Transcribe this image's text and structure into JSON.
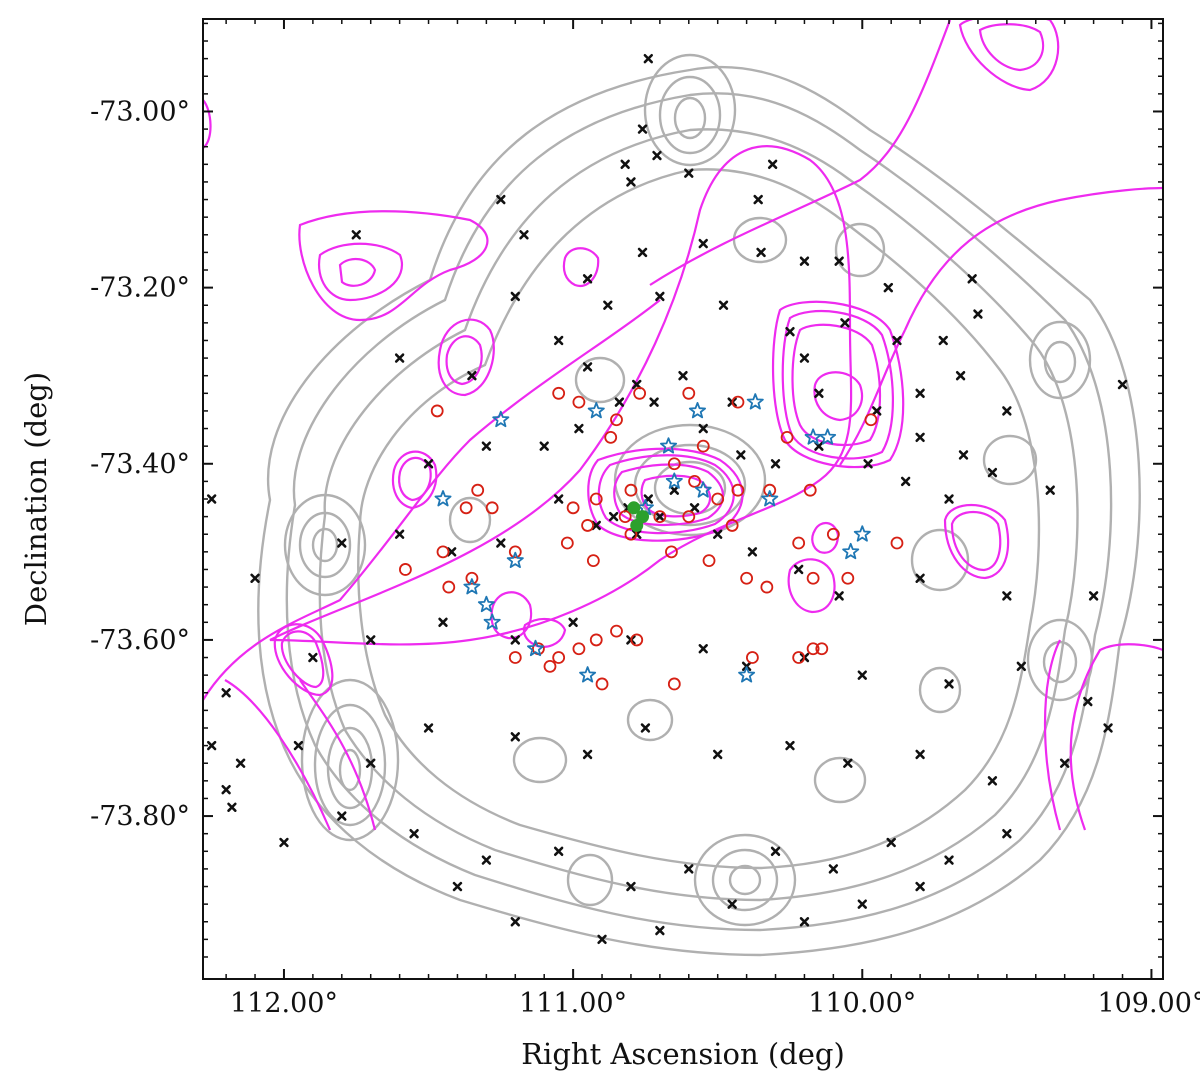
{
  "chart_data": {
    "type": "scatter",
    "xlabel": "Right Ascension (deg)",
    "ylabel": "Declination (deg)",
    "x_reversed": true,
    "xlim": [
      112.28,
      108.96
    ],
    "ylim": [
      -73.985,
      -72.895
    ],
    "xticks": [
      {
        "value": 112.0,
        "label": "112.00°"
      },
      {
        "value": 111.0,
        "label": "111.00°"
      },
      {
        "value": 110.0,
        "label": "110.00°"
      },
      {
        "value": 109.0,
        "label": "109.00°"
      }
    ],
    "yticks": [
      {
        "value": -73.0,
        "label": "-73.00°"
      },
      {
        "value": -73.2,
        "label": "-73.20°"
      },
      {
        "value": -73.4,
        "label": "-73.40°"
      },
      {
        "value": -73.6,
        "label": "-73.60°"
      },
      {
        "value": -73.8,
        "label": "-73.80°"
      }
    ],
    "grid": false,
    "colors": {
      "gray_contours": "#b0b0b0",
      "magenta_contours": "#ee2bef",
      "black_points": "#111111",
      "red_circles": "#d62014",
      "blue_stars": "#1f77b4",
      "green_center": "#2ca02c"
    },
    "series": [
      {
        "marker": "black-x",
        "points": [
          [
            110.74,
            -72.94
          ],
          [
            110.76,
            -73.02
          ],
          [
            110.82,
            -73.06
          ],
          [
            110.8,
            -73.08
          ],
          [
            110.71,
            -73.05
          ],
          [
            110.6,
            -73.07
          ],
          [
            110.31,
            -73.06
          ],
          [
            111.25,
            -73.1
          ],
          [
            110.36,
            -73.1
          ],
          [
            111.17,
            -73.14
          ],
          [
            110.95,
            -73.19
          ],
          [
            110.76,
            -73.16
          ],
          [
            110.55,
            -73.15
          ],
          [
            110.35,
            -73.16
          ],
          [
            110.2,
            -73.17
          ],
          [
            110.08,
            -73.17
          ],
          [
            109.91,
            -73.2
          ],
          [
            109.62,
            -73.19
          ],
          [
            109.6,
            -73.23
          ],
          [
            109.72,
            -73.26
          ],
          [
            111.75,
            -73.14
          ],
          [
            111.2,
            -73.21
          ],
          [
            110.88,
            -73.22
          ],
          [
            110.7,
            -73.21
          ],
          [
            110.48,
            -73.22
          ],
          [
            110.25,
            -73.25
          ],
          [
            110.06,
            -73.24
          ],
          [
            109.88,
            -73.26
          ],
          [
            109.8,
            -73.32
          ],
          [
            109.66,
            -73.3
          ],
          [
            109.5,
            -73.34
          ],
          [
            109.1,
            -73.31
          ],
          [
            112.4,
            -73.26
          ],
          [
            112.33,
            -73.3
          ],
          [
            111.6,
            -73.28
          ],
          [
            111.35,
            -73.3
          ],
          [
            111.05,
            -73.26
          ],
          [
            110.95,
            -73.29
          ],
          [
            110.78,
            -73.31
          ],
          [
            110.62,
            -73.3
          ],
          [
            110.45,
            -73.33
          ],
          [
            110.2,
            -73.28
          ],
          [
            110.15,
            -73.32
          ],
          [
            109.95,
            -73.34
          ],
          [
            109.8,
            -73.37
          ],
          [
            109.65,
            -73.39
          ],
          [
            109.55,
            -73.41
          ],
          [
            109.35,
            -73.43
          ],
          [
            112.5,
            -73.42
          ],
          [
            112.25,
            -73.44
          ],
          [
            111.5,
            -73.4
          ],
          [
            111.3,
            -73.38
          ],
          [
            111.1,
            -73.38
          ],
          [
            110.98,
            -73.36
          ],
          [
            110.84,
            -73.33
          ],
          [
            110.72,
            -73.33
          ],
          [
            110.55,
            -73.36
          ],
          [
            110.42,
            -73.39
          ],
          [
            110.3,
            -73.4
          ],
          [
            110.15,
            -73.38
          ],
          [
            109.98,
            -73.4
          ],
          [
            109.85,
            -73.42
          ],
          [
            109.7,
            -73.44
          ],
          [
            112.45,
            -73.51
          ],
          [
            112.3,
            -73.54
          ],
          [
            112.1,
            -73.53
          ],
          [
            111.8,
            -73.49
          ],
          [
            111.6,
            -73.48
          ],
          [
            111.42,
            -73.5
          ],
          [
            111.25,
            -73.49
          ],
          [
            111.05,
            -73.44
          ],
          [
            110.92,
            -73.47
          ],
          [
            110.86,
            -73.46
          ],
          [
            110.81,
            -73.45
          ],
          [
            110.78,
            -73.48
          ],
          [
            110.74,
            -73.44
          ],
          [
            110.7,
            -73.46
          ],
          [
            110.65,
            -73.43
          ],
          [
            110.58,
            -73.45
          ],
          [
            110.5,
            -73.48
          ],
          [
            110.38,
            -73.5
          ],
          [
            110.22,
            -73.52
          ],
          [
            110.08,
            -73.55
          ],
          [
            109.8,
            -73.53
          ],
          [
            109.5,
            -73.55
          ],
          [
            109.2,
            -73.55
          ],
          [
            112.6,
            -73.58
          ],
          [
            112.35,
            -73.63
          ],
          [
            112.2,
            -73.66
          ],
          [
            111.9,
            -73.62
          ],
          [
            111.7,
            -73.6
          ],
          [
            111.45,
            -73.58
          ],
          [
            111.2,
            -73.6
          ],
          [
            111.0,
            -73.58
          ],
          [
            110.8,
            -73.6
          ],
          [
            110.55,
            -73.61
          ],
          [
            110.4,
            -73.63
          ],
          [
            110.2,
            -73.62
          ],
          [
            110.0,
            -73.64
          ],
          [
            109.7,
            -73.65
          ],
          [
            109.45,
            -73.63
          ],
          [
            109.22,
            -73.67
          ],
          [
            112.25,
            -73.72
          ],
          [
            112.15,
            -73.74
          ],
          [
            112.2,
            -73.77
          ],
          [
            112.18,
            -73.79
          ],
          [
            111.95,
            -73.72
          ],
          [
            111.7,
            -73.74
          ],
          [
            111.5,
            -73.7
          ],
          [
            111.2,
            -73.71
          ],
          [
            110.95,
            -73.73
          ],
          [
            110.75,
            -73.7
          ],
          [
            110.5,
            -73.73
          ],
          [
            110.25,
            -73.72
          ],
          [
            110.05,
            -73.74
          ],
          [
            109.8,
            -73.73
          ],
          [
            109.55,
            -73.76
          ],
          [
            109.3,
            -73.74
          ],
          [
            109.15,
            -73.7
          ],
          [
            112.0,
            -73.83
          ],
          [
            111.8,
            -73.8
          ],
          [
            111.55,
            -73.82
          ],
          [
            111.3,
            -73.85
          ],
          [
            111.05,
            -73.84
          ],
          [
            110.8,
            -73.88
          ],
          [
            110.6,
            -73.86
          ],
          [
            110.3,
            -73.84
          ],
          [
            110.1,
            -73.86
          ],
          [
            109.9,
            -73.83
          ],
          [
            109.7,
            -73.85
          ],
          [
            109.5,
            -73.82
          ],
          [
            111.4,
            -73.88
          ],
          [
            111.2,
            -73.92
          ],
          [
            110.9,
            -73.94
          ],
          [
            110.7,
            -73.93
          ],
          [
            110.45,
            -73.9
          ],
          [
            110.2,
            -73.92
          ],
          [
            110.0,
            -73.9
          ],
          [
            109.8,
            -73.88
          ]
        ]
      },
      {
        "marker": "red-open-circle",
        "points": [
          [
            111.47,
            -73.34
          ],
          [
            111.05,
            -73.32
          ],
          [
            110.98,
            -73.33
          ],
          [
            110.85,
            -73.35
          ],
          [
            110.77,
            -73.32
          ],
          [
            110.6,
            -73.32
          ],
          [
            110.43,
            -73.33
          ],
          [
            110.55,
            -73.38
          ],
          [
            110.26,
            -73.37
          ],
          [
            109.97,
            -73.35
          ],
          [
            110.87,
            -73.37
          ],
          [
            111.33,
            -73.43
          ],
          [
            111.37,
            -73.45
          ],
          [
            111.28,
            -73.45
          ],
          [
            111.0,
            -73.45
          ],
          [
            110.92,
            -73.44
          ],
          [
            110.8,
            -73.43
          ],
          [
            110.65,
            -73.4
          ],
          [
            110.58,
            -73.42
          ],
          [
            110.5,
            -73.44
          ],
          [
            110.43,
            -73.43
          ],
          [
            110.32,
            -73.43
          ],
          [
            110.18,
            -73.43
          ],
          [
            110.95,
            -73.47
          ],
          [
            110.82,
            -73.46
          ],
          [
            110.7,
            -73.46
          ],
          [
            110.6,
            -73.46
          ],
          [
            110.45,
            -73.47
          ],
          [
            110.22,
            -73.49
          ],
          [
            110.1,
            -73.48
          ],
          [
            109.88,
            -73.49
          ],
          [
            111.02,
            -73.49
          ],
          [
            110.93,
            -73.51
          ],
          [
            110.8,
            -73.48
          ],
          [
            110.66,
            -73.5
          ],
          [
            110.53,
            -73.51
          ],
          [
            111.45,
            -73.5
          ],
          [
            111.2,
            -73.5
          ],
          [
            111.58,
            -73.52
          ],
          [
            111.43,
            -73.54
          ],
          [
            111.35,
            -73.53
          ],
          [
            110.4,
            -73.53
          ],
          [
            110.33,
            -73.54
          ],
          [
            110.17,
            -73.53
          ],
          [
            110.05,
            -73.53
          ],
          [
            111.05,
            -73.62
          ],
          [
            110.98,
            -73.61
          ],
          [
            110.92,
            -73.6
          ],
          [
            110.85,
            -73.59
          ],
          [
            110.78,
            -73.6
          ],
          [
            111.12,
            -73.61
          ],
          [
            111.2,
            -73.62
          ],
          [
            111.08,
            -73.63
          ],
          [
            110.9,
            -73.65
          ],
          [
            110.65,
            -73.65
          ],
          [
            110.38,
            -73.62
          ],
          [
            110.22,
            -73.62
          ],
          [
            110.17,
            -73.61
          ],
          [
            110.14,
            -73.61
          ]
        ]
      },
      {
        "marker": "blue-open-star",
        "points": [
          [
            111.25,
            -73.35
          ],
          [
            110.92,
            -73.34
          ],
          [
            110.57,
            -73.34
          ],
          [
            110.37,
            -73.33
          ],
          [
            110.17,
            -73.37
          ],
          [
            110.12,
            -73.37
          ],
          [
            110.67,
            -73.38
          ],
          [
            110.65,
            -73.42
          ],
          [
            110.55,
            -73.43
          ],
          [
            110.75,
            -73.45
          ],
          [
            111.45,
            -73.44
          ],
          [
            110.32,
            -73.44
          ],
          [
            110.0,
            -73.48
          ],
          [
            110.04,
            -73.5
          ],
          [
            111.2,
            -73.51
          ],
          [
            111.35,
            -73.54
          ],
          [
            111.3,
            -73.56
          ],
          [
            111.28,
            -73.58
          ],
          [
            111.13,
            -73.61
          ],
          [
            110.95,
            -73.64
          ],
          [
            110.4,
            -73.64
          ]
        ]
      },
      {
        "marker": "green-center",
        "points": [
          [
            110.79,
            -73.45
          ],
          [
            110.76,
            -73.46
          ],
          [
            110.78,
            -73.47
          ]
        ]
      }
    ]
  }
}
